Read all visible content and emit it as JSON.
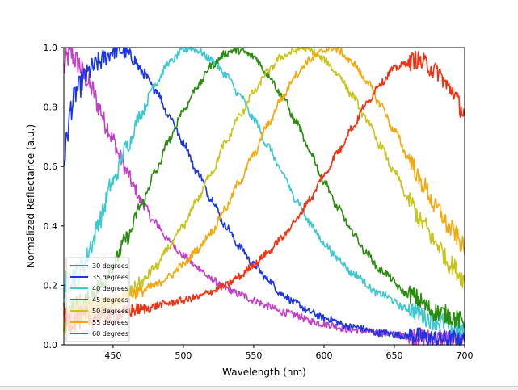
{
  "chart_data": {
    "type": "line",
    "title": "",
    "xlabel": "Wavelength (nm)",
    "ylabel": "Normalized Reflectance (a.u.)",
    "xlim": [
      415,
      700
    ],
    "ylim": [
      0.0,
      1.0
    ],
    "xticks": [
      450,
      500,
      550,
      600,
      650,
      700
    ],
    "yticks": [
      0.0,
      0.2,
      0.4,
      0.6,
      0.8,
      1.0
    ],
    "xtick_labels": [
      "450",
      "500",
      "550",
      "600",
      "650",
      "700"
    ],
    "ytick_labels": [
      "0.0",
      "0.2",
      "0.4",
      "0.6",
      "0.8",
      "1.0"
    ],
    "grid": false,
    "legend_position": "lower-left",
    "series": [
      {
        "name": "30 degrees",
        "color": "#c43fc8",
        "x": [
          415,
          418,
          420,
          425,
          430,
          435,
          440,
          445,
          450,
          455,
          460,
          465,
          470,
          480,
          490,
          500,
          510,
          520,
          530,
          540,
          550,
          560,
          570,
          580,
          590,
          600,
          620,
          640,
          660,
          680,
          700
        ],
        "y": [
          0.93,
          0.97,
          0.98,
          0.95,
          0.9,
          0.86,
          0.8,
          0.74,
          0.69,
          0.63,
          0.58,
          0.53,
          0.48,
          0.41,
          0.35,
          0.3,
          0.26,
          0.22,
          0.19,
          0.17,
          0.15,
          0.13,
          0.11,
          0.1,
          0.08,
          0.07,
          0.05,
          0.04,
          0.03,
          0.02,
          0.02
        ]
      },
      {
        "name": "35 degrees",
        "color": "#1a35e6",
        "x": [
          415,
          418,
          420,
          425,
          430,
          435,
          440,
          445,
          450,
          455,
          460,
          465,
          470,
          480,
          490,
          500,
          510,
          520,
          530,
          540,
          550,
          560,
          570,
          580,
          590,
          600,
          620,
          640,
          660,
          680,
          700
        ],
        "y": [
          0.62,
          0.72,
          0.8,
          0.86,
          0.9,
          0.93,
          0.95,
          0.97,
          0.99,
          0.99,
          0.98,
          0.96,
          0.92,
          0.86,
          0.77,
          0.68,
          0.58,
          0.49,
          0.4,
          0.33,
          0.27,
          0.22,
          0.17,
          0.14,
          0.11,
          0.09,
          0.06,
          0.04,
          0.03,
          0.02,
          0.02
        ]
      },
      {
        "name": "40 degrees",
        "color": "#40c8d0",
        "x": [
          415,
          425,
          430,
          435,
          440,
          450,
          460,
          470,
          480,
          490,
          500,
          505,
          510,
          520,
          530,
          540,
          550,
          560,
          570,
          580,
          590,
          600,
          610,
          620,
          640,
          660,
          680,
          700
        ],
        "y": [
          0.2,
          0.24,
          0.28,
          0.34,
          0.42,
          0.55,
          0.67,
          0.78,
          0.88,
          0.95,
          0.99,
          1.0,
          0.99,
          0.96,
          0.91,
          0.84,
          0.76,
          0.67,
          0.58,
          0.49,
          0.41,
          0.34,
          0.29,
          0.24,
          0.17,
          0.12,
          0.08,
          0.05
        ]
      },
      {
        "name": "45 degrees",
        "color": "#2a8c0e",
        "x": [
          415,
          430,
          440,
          450,
          460,
          470,
          480,
          490,
          500,
          510,
          520,
          530,
          535,
          540,
          550,
          560,
          570,
          580,
          590,
          600,
          610,
          620,
          630,
          640,
          660,
          680,
          700
        ],
        "y": [
          0.1,
          0.14,
          0.19,
          0.27,
          0.36,
          0.47,
          0.58,
          0.69,
          0.79,
          0.87,
          0.94,
          0.98,
          0.99,
          0.99,
          0.97,
          0.91,
          0.84,
          0.75,
          0.65,
          0.55,
          0.46,
          0.38,
          0.31,
          0.25,
          0.17,
          0.11,
          0.08
        ]
      },
      {
        "name": "50 degrees",
        "color": "#c8c41a",
        "x": [
          415,
          430,
          450,
          460,
          470,
          480,
          490,
          500,
          510,
          520,
          530,
          540,
          550,
          560,
          570,
          580,
          585,
          590,
          600,
          610,
          620,
          630,
          640,
          650,
          660,
          670,
          680,
          690,
          700
        ],
        "y": [
          0.08,
          0.1,
          0.13,
          0.17,
          0.21,
          0.26,
          0.33,
          0.4,
          0.49,
          0.58,
          0.68,
          0.77,
          0.85,
          0.92,
          0.97,
          0.99,
          1.0,
          0.99,
          0.96,
          0.91,
          0.84,
          0.76,
          0.67,
          0.58,
          0.49,
          0.41,
          0.34,
          0.27,
          0.22
        ]
      },
      {
        "name": "55 degrees",
        "color": "#f5a80a",
        "x": [
          415,
          430,
          450,
          470,
          480,
          490,
          500,
          510,
          520,
          530,
          540,
          550,
          560,
          570,
          580,
          590,
          600,
          605,
          610,
          620,
          630,
          640,
          650,
          660,
          670,
          680,
          690,
          700
        ],
        "y": [
          0.1,
          0.12,
          0.15,
          0.18,
          0.2,
          0.23,
          0.27,
          0.32,
          0.38,
          0.46,
          0.55,
          0.64,
          0.74,
          0.83,
          0.91,
          0.96,
          0.99,
          1.0,
          0.99,
          0.95,
          0.89,
          0.81,
          0.72,
          0.63,
          0.54,
          0.46,
          0.39,
          0.33
        ]
      },
      {
        "name": "60 degrees",
        "color": "#f53010",
        "x": [
          415,
          430,
          450,
          470,
          490,
          500,
          510,
          520,
          530,
          540,
          550,
          560,
          570,
          580,
          590,
          600,
          610,
          620,
          630,
          640,
          650,
          660,
          665,
          670,
          680,
          690,
          700
        ],
        "y": [
          0.08,
          0.09,
          0.1,
          0.12,
          0.14,
          0.15,
          0.16,
          0.18,
          0.2,
          0.23,
          0.27,
          0.31,
          0.36,
          0.42,
          0.49,
          0.57,
          0.65,
          0.73,
          0.81,
          0.88,
          0.93,
          0.95,
          0.96,
          0.95,
          0.92,
          0.86,
          0.78
        ]
      }
    ]
  }
}
